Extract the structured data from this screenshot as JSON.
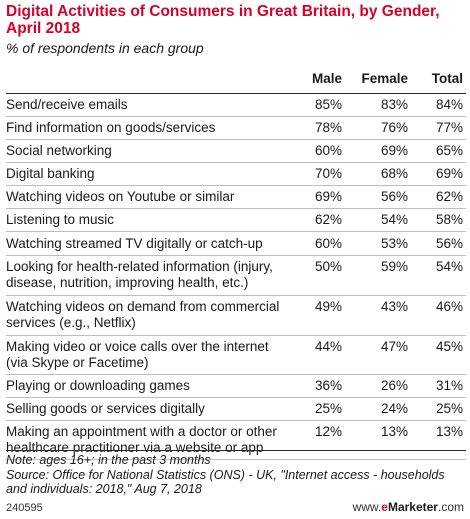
{
  "chart_data": {
    "type": "table",
    "title": "Digital Activities of Consumers in Great Britain, by Gender, April 2018",
    "subtitle": "% of respondents in each group",
    "columns": [
      "Male",
      "Female",
      "Total"
    ],
    "rows": [
      {
        "label": "Send/receive emails",
        "values": [
          "85%",
          "83%",
          "84%"
        ]
      },
      {
        "label": "Find information on goods/services",
        "values": [
          "78%",
          "76%",
          "77%"
        ]
      },
      {
        "label": "Social networking",
        "values": [
          "60%",
          "69%",
          "65%"
        ]
      },
      {
        "label": "Digital banking",
        "values": [
          "70%",
          "68%",
          "69%"
        ]
      },
      {
        "label": "Watching videos on Youtube or similar",
        "values": [
          "69%",
          "56%",
          "62%"
        ]
      },
      {
        "label": "Listening to music",
        "values": [
          "62%",
          "54%",
          "58%"
        ]
      },
      {
        "label": "Watching streamed TV digitally or catch-up",
        "values": [
          "60%",
          "53%",
          "56%"
        ]
      },
      {
        "label": "Looking for health-related information (injury, disease, nutrition, improving health, etc.)",
        "values": [
          "50%",
          "59%",
          "54%"
        ]
      },
      {
        "label": "Watching videos on demand from commercial services (e.g., Netflix)",
        "values": [
          "49%",
          "43%",
          "46%"
        ]
      },
      {
        "label": "Making video or voice calls over the internet (via Skype or Facetime)",
        "values": [
          "44%",
          "47%",
          "45%"
        ]
      },
      {
        "label": "Playing or downloading games",
        "values": [
          "36%",
          "26%",
          "31%"
        ]
      },
      {
        "label": "Selling goods or services digitally",
        "values": [
          "25%",
          "24%",
          "25%"
        ]
      },
      {
        "label": "Making an appointment with a doctor or other healthcare practitioner via a website or app",
        "values": [
          "12%",
          "13%",
          "13%"
        ]
      }
    ]
  },
  "footer": {
    "note": "Note: ages 16+; in the past 3 months",
    "source": "Source: Office for National Statistics (ONS) - UK, \"Internet access - households and individuals: 2018,\" Aug 7, 2018",
    "chart_id": "240595",
    "brand_prefix": "www.",
    "brand_e": "e",
    "brand_name": "Marketer",
    "brand_suffix": ".com"
  },
  "colors": {
    "title": "#d7002b",
    "rule": "#2a2a2a",
    "row_divider": "#bdbdbd"
  }
}
